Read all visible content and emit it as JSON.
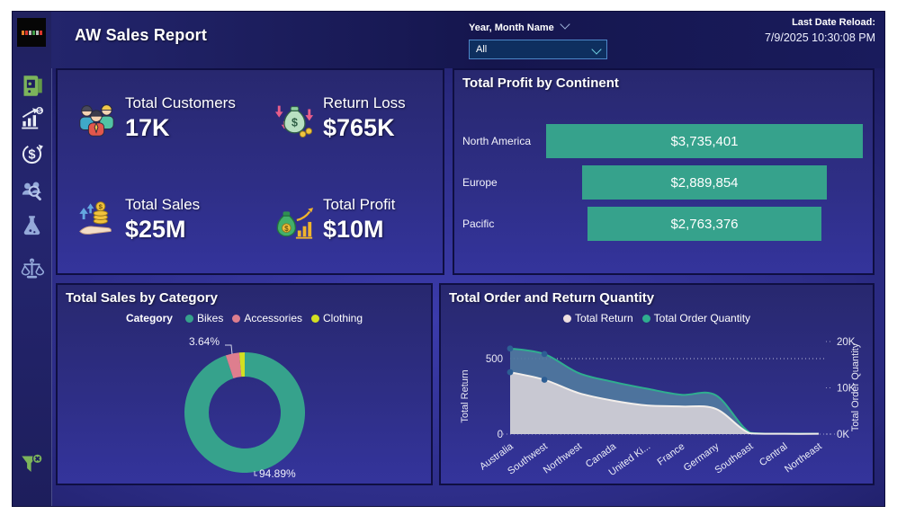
{
  "header": {
    "title": "AW Sales Report",
    "slicer_label": "Year, Month Name",
    "slicer_value": "All",
    "reload_label": "Last Date Reload:",
    "reload_value": "7/9/2025 10:30:08 PM"
  },
  "sidebar": {
    "icons": [
      "door-icon",
      "sales-growth-chart-icon",
      "money-cycle-icon",
      "customer-search-icon",
      "flask-icon",
      "balance-scale-icon"
    ],
    "footer_icon": "clear-filter-icon"
  },
  "kpis": [
    {
      "icon": "customers-group-icon",
      "label": "Total Customers",
      "value": "17K"
    },
    {
      "icon": "money-bag-loss-icon",
      "label": "Return Loss",
      "value": "$765K"
    },
    {
      "icon": "hand-coins-icon",
      "label": "Total Sales",
      "value": "$25M"
    },
    {
      "icon": "money-bag-chart-icon",
      "label": "Total Profit",
      "value": "$10M"
    }
  ],
  "colors": {
    "teal": "#36a28c",
    "accessories_pink": "#de7e8e",
    "clothing_yellow": "#d3df21",
    "return_fill": "#c8c8d2",
    "return_line": "#f2eeeb",
    "order_fill": "#50799f",
    "order_line": "#2fae8f",
    "marker": "#2d5e94"
  },
  "chart_data": [
    {
      "type": "bar",
      "subtype": "centered-funnel",
      "title": "Total Profit by Continent",
      "categories": [
        "North America",
        "Europe",
        "Pacific"
      ],
      "values": [
        3735401,
        2889854,
        2763376
      ],
      "labels": [
        "$3,735,401",
        "$2,889,854",
        "$2,763,376"
      ],
      "bar_color": "#36a28c"
    },
    {
      "type": "pie",
      "title": "Total Sales by Category",
      "legend_title": "Category",
      "legend_position": "top",
      "categories": [
        "Bikes",
        "Accessories",
        "Clothing"
      ],
      "values": [
        94.89,
        3.64,
        1.47
      ],
      "colors": [
        "#36a28c",
        "#de7e8e",
        "#d3df21"
      ],
      "shown_labels": {
        "bikes": "94.89%",
        "accessories": "3.64%"
      }
    },
    {
      "type": "area",
      "title": "Total Order and Return Quantity",
      "legend_position": "top",
      "categories": [
        "Australia",
        "Southwest",
        "Northwest",
        "Canada",
        "United Ki...",
        "France",
        "Germany",
        "Southeast",
        "Central",
        "Northeast"
      ],
      "series": [
        {
          "name": "Total Return",
          "axis": "left",
          "line": "#f2eeeb",
          "fill": "#c8c8d2",
          "values": [
            410,
            360,
            272,
            222,
            190,
            183,
            167,
            5,
            2,
            2
          ]
        },
        {
          "name": "Total Order Quantity",
          "axis": "right",
          "line": "#2fae8f",
          "fill": "#50799f",
          "values": [
            18500,
            17300,
            13200,
            11300,
            9800,
            8500,
            8400,
            300,
            100,
            100
          ]
        }
      ],
      "left_axis": {
        "label": "Total Return",
        "tick_values": [
          0,
          500
        ],
        "tick_labels": [
          "0",
          "500"
        ],
        "max": 500
      },
      "right_axis": {
        "label": "Total Order Quantity",
        "tick_values": [
          0,
          10000,
          20000
        ],
        "tick_labels": [
          "0K",
          "10K",
          "20K"
        ],
        "max": 20000
      },
      "gridline_at_left_value": 500,
      "marker_color": "#2d5e94"
    }
  ]
}
